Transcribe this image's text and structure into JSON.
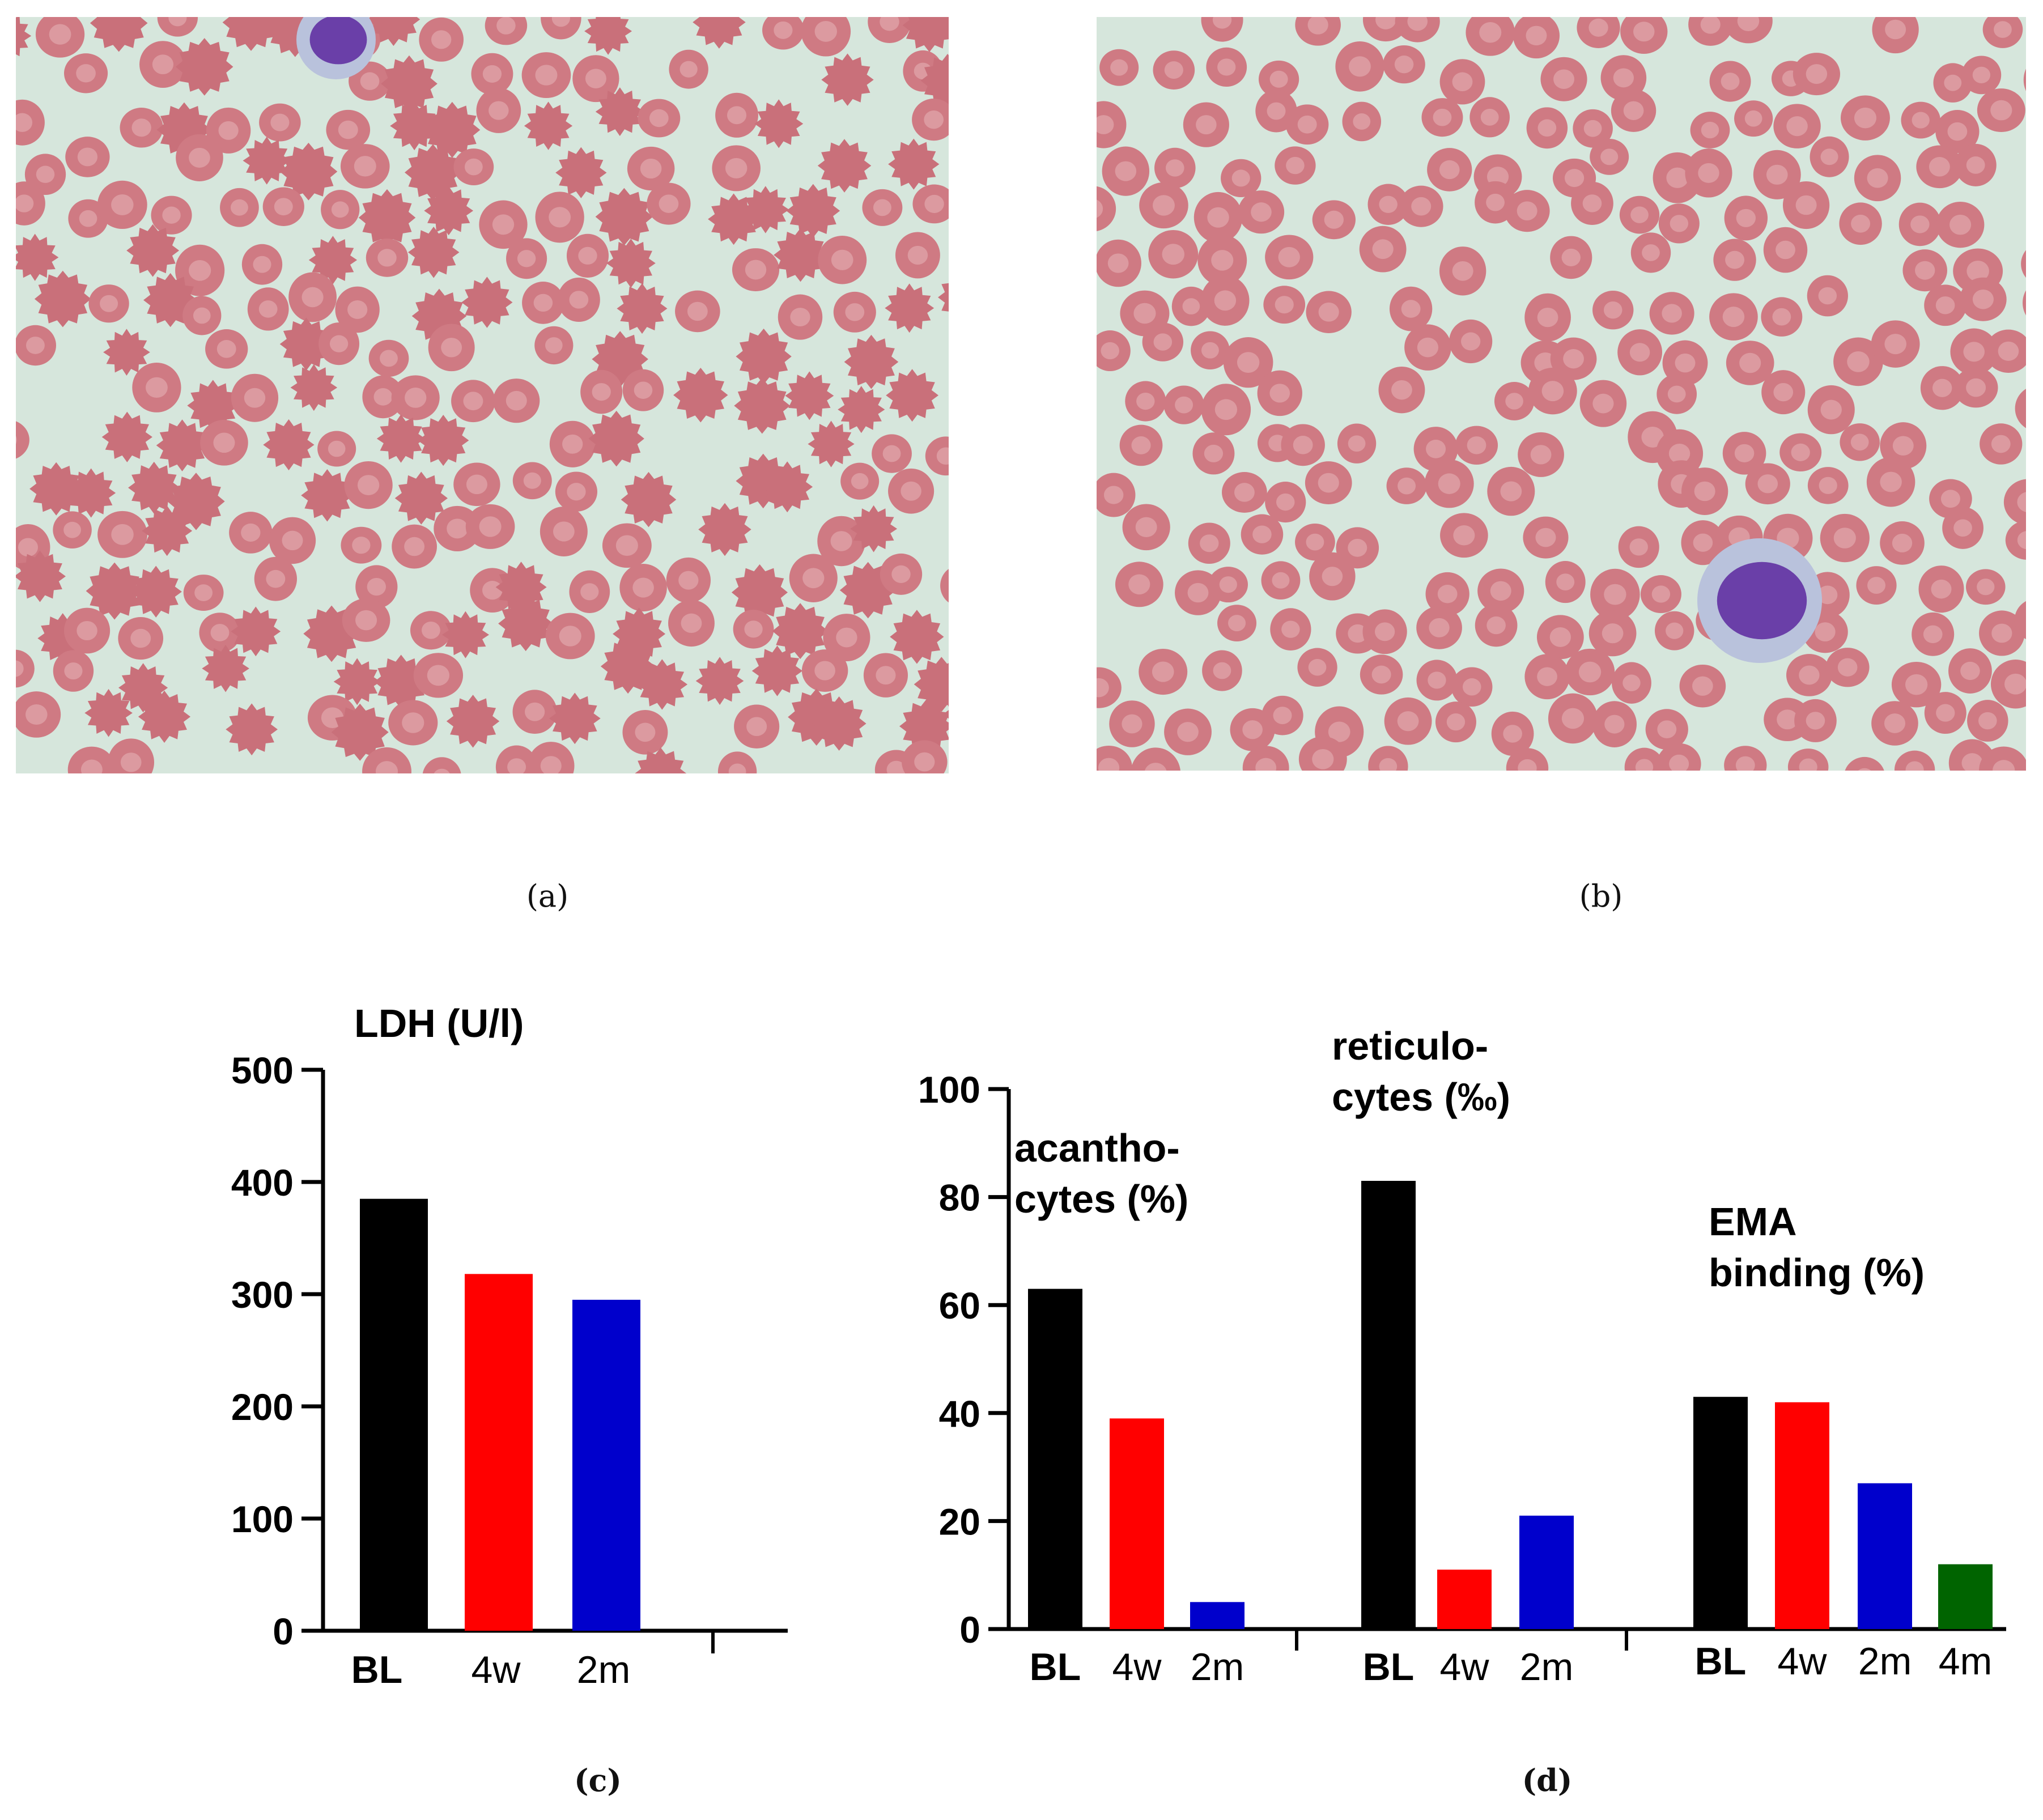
{
  "panels": {
    "a": {
      "caption": "(a)",
      "description": "blood-smear-acanthocytes"
    },
    "b": {
      "caption": "(b)",
      "description": "blood-smear-normal"
    },
    "c": {
      "caption": "(c)"
    },
    "d": {
      "caption": "(d)"
    }
  },
  "colors": {
    "BL": "#000000",
    "4w": "#ff0000",
    "2m": "#0000cc",
    "4m": "#006400"
  },
  "chart_data": [
    {
      "type": "bar",
      "title": "LDH (U/l)",
      "categories": [
        "BL",
        "4w",
        "2m"
      ],
      "values": [
        385,
        318,
        295
      ],
      "ylim": [
        0,
        500
      ],
      "yticks": [
        "0",
        "100",
        "200",
        "300",
        "400",
        "500"
      ],
      "xlabel": "",
      "ylabel": ""
    },
    {
      "type": "bar",
      "ylim": [
        0,
        100
      ],
      "yticks": [
        "0",
        "20",
        "40",
        "60",
        "80",
        "100"
      ],
      "groups": [
        {
          "label_line1": "acantho-",
          "label_line2": "cytes (%)",
          "categories": [
            "BL",
            "4w",
            "2m"
          ],
          "values": [
            63,
            39,
            5
          ]
        },
        {
          "label_line1": "reticulo-",
          "label_line2": "cytes (‰)",
          "categories": [
            "BL",
            "4w",
            "2m"
          ],
          "values": [
            83,
            11,
            21
          ]
        },
        {
          "label_line1": "EMA",
          "label_line2": "binding (%)",
          "categories": [
            "BL",
            "4w",
            "2m",
            "4m"
          ],
          "values": [
            43,
            42,
            27,
            12
          ]
        }
      ]
    }
  ]
}
